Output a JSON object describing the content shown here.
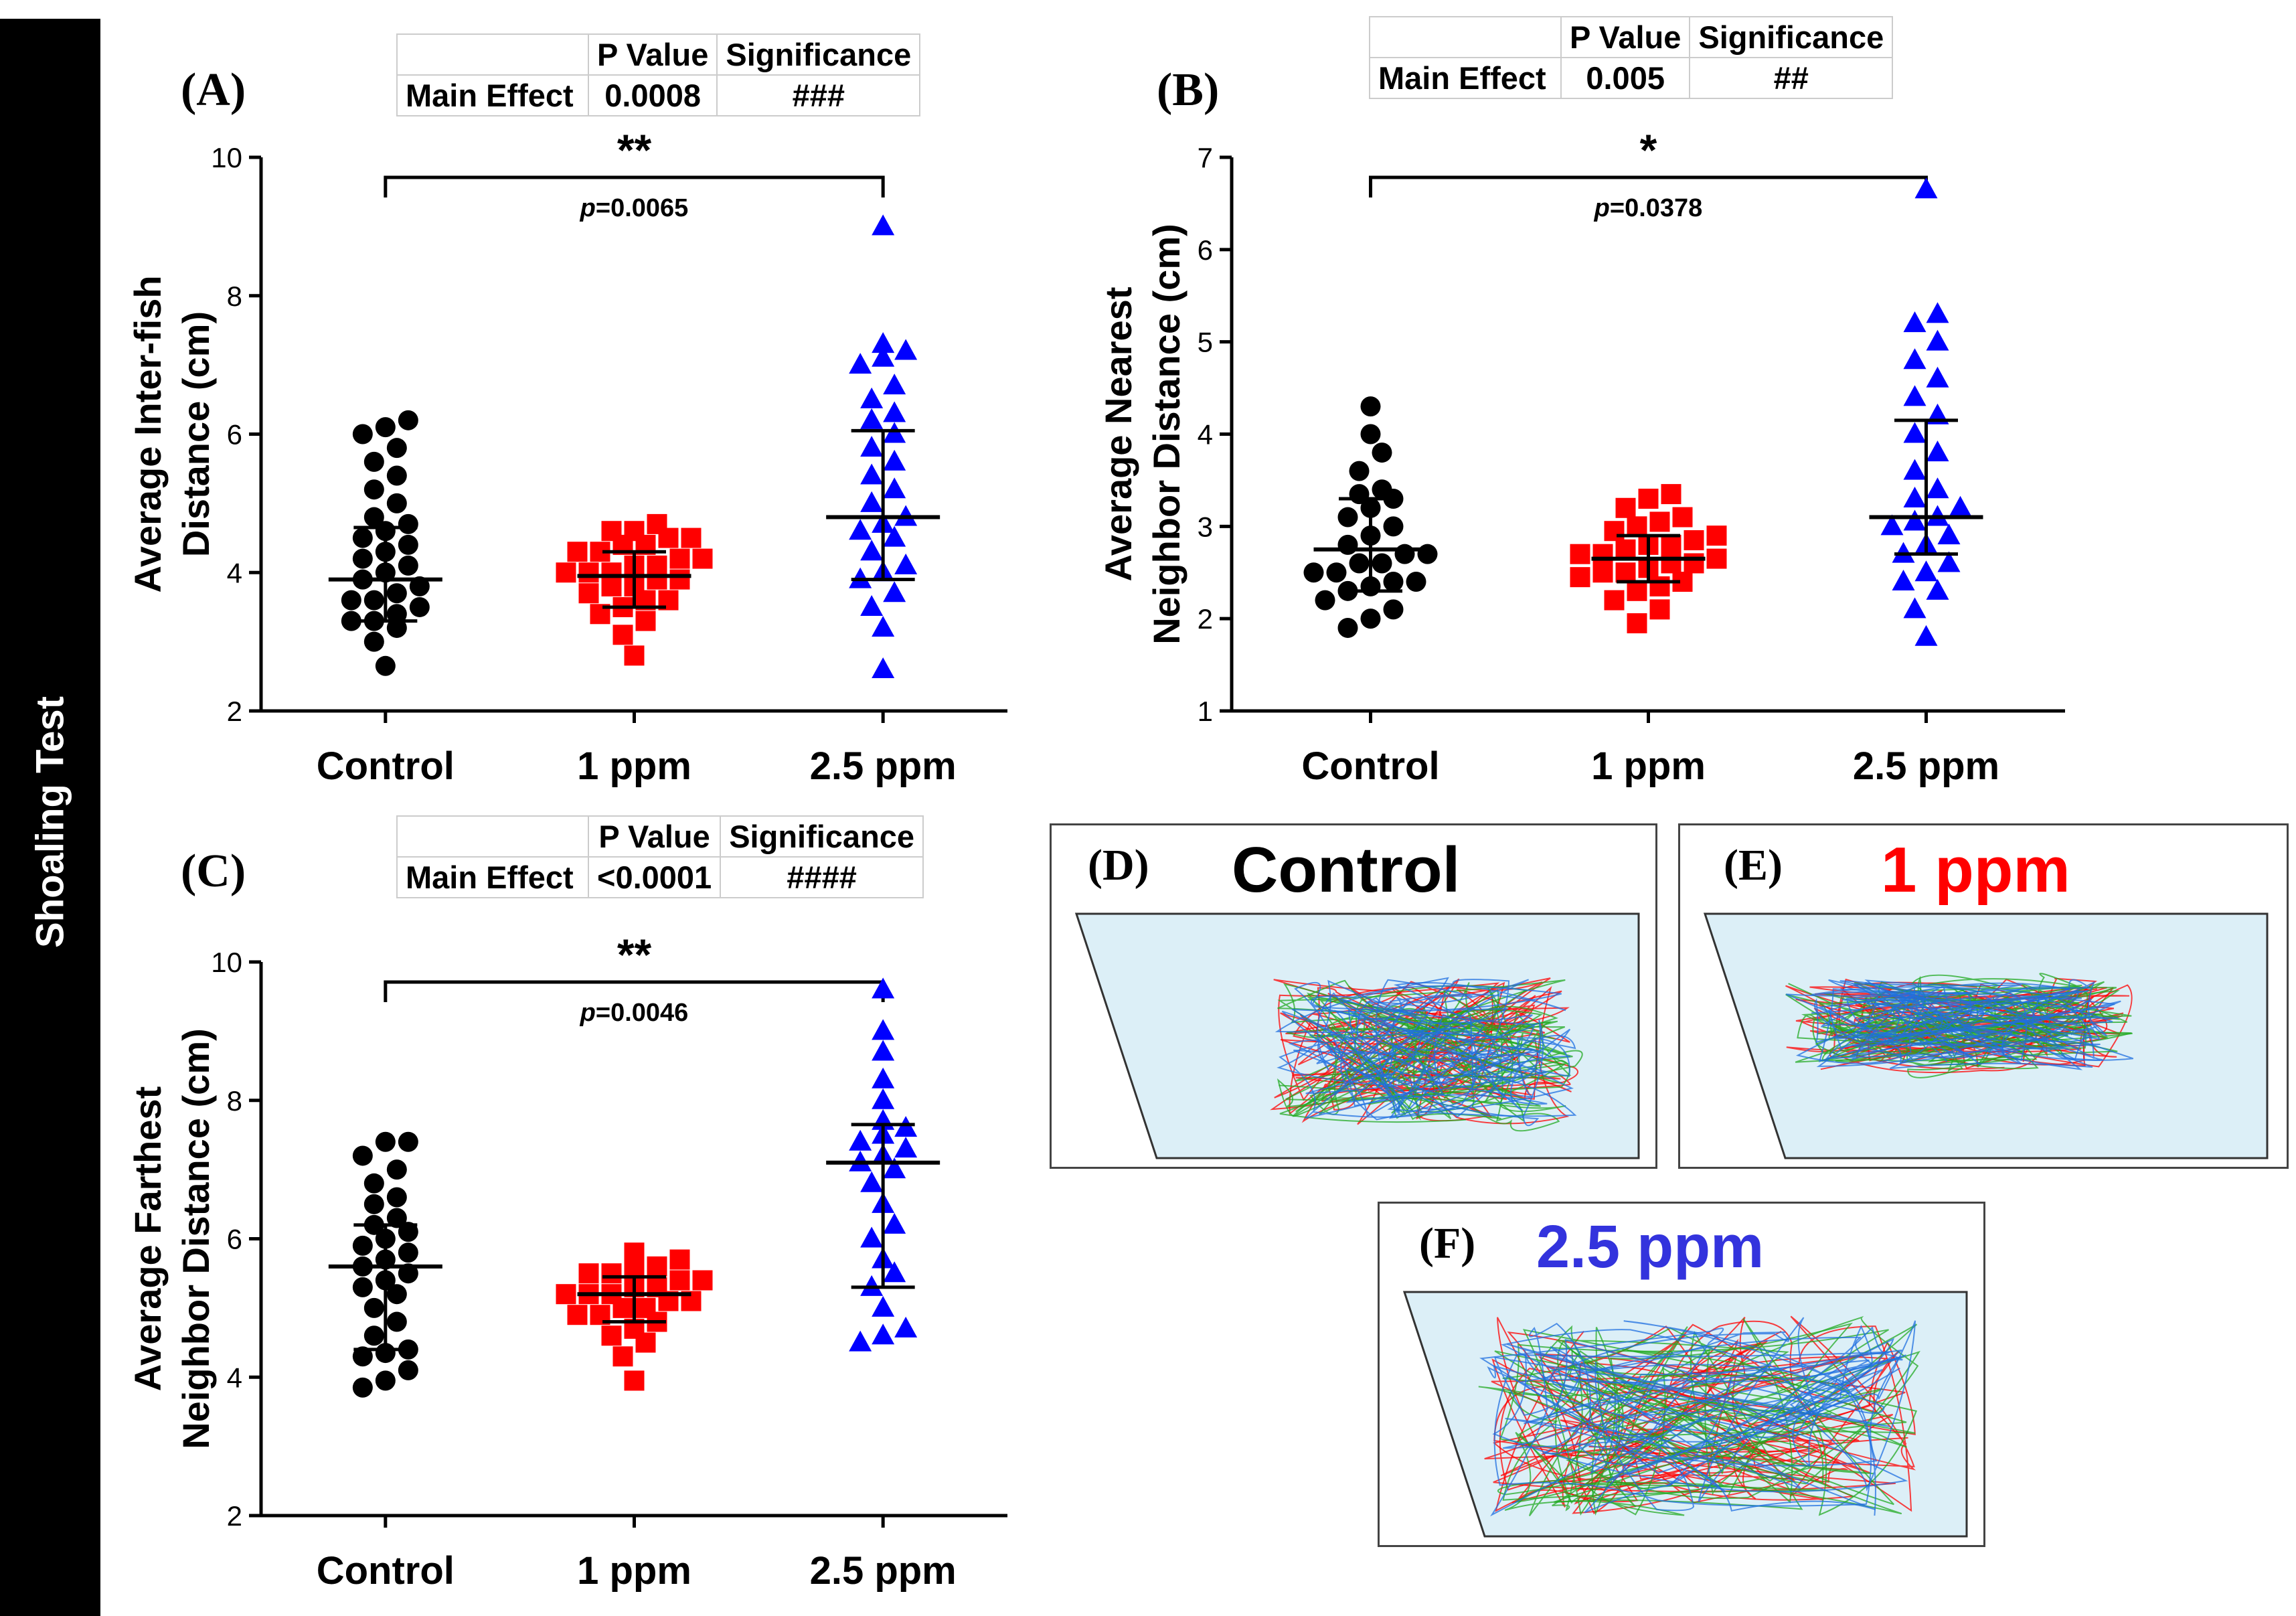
{
  "sidebar": {
    "label": "Shoaling Test"
  },
  "colors": {
    "control": "#000000",
    "ppm1": "#ff0000",
    "ppm25": "#0000ff",
    "tank": "#dceff7"
  },
  "panels": [
    {
      "letter": "(A)",
      "table": {
        "headers": [
          "",
          "P Value",
          "Significance"
        ],
        "row": [
          "Main Effect",
          "0.0008",
          "###"
        ]
      },
      "sig": {
        "stars": "**",
        "p_prefix": "p",
        "p_value": "=0.0065"
      },
      "ylabel1": "Average Inter-fish",
      "ylabel2": "Distance (cm)"
    },
    {
      "letter": "(B)",
      "table": {
        "headers": [
          "",
          "P Value",
          "Significance"
        ],
        "row": [
          "Main Effect",
          "0.005",
          "##"
        ]
      },
      "sig": {
        "stars": "*",
        "p_prefix": "p",
        "p_value": "=0.0378"
      },
      "ylabel1": "Average Nearest",
      "ylabel2": "Neighbor Distance (cm)"
    },
    {
      "letter": "(C)",
      "table": {
        "headers": [
          "",
          "P Value",
          "Significance"
        ],
        "row": [
          "Main Effect",
          "<0.0001",
          "####"
        ]
      },
      "sig": {
        "stars": "**",
        "p_prefix": "p",
        "p_value": "=0.0046"
      },
      "ylabel1": "Average Farthest",
      "ylabel2": "Neighbor Distance (cm)"
    }
  ],
  "chart_data": [
    {
      "type": "scatter",
      "title": "(A)",
      "ylabel": "Average Inter-fish Distance (cm)",
      "categories": [
        "Control",
        "1 ppm",
        "2.5 ppm"
      ],
      "ylim": [
        2,
        10
      ],
      "yticks": [
        2,
        4,
        6,
        8,
        10
      ],
      "series": [
        {
          "name": "Control",
          "marker": "circle",
          "color": "#000000",
          "mean": 3.9,
          "err_low": 3.3,
          "err_high": 4.65,
          "values": [
            2.65,
            3.0,
            3.2,
            3.3,
            3.3,
            3.4,
            3.5,
            3.6,
            3.6,
            3.7,
            3.8,
            3.9,
            4.0,
            4.1,
            4.2,
            4.3,
            4.4,
            4.5,
            4.6,
            4.7,
            4.8,
            5.0,
            5.2,
            5.4,
            5.6,
            5.8,
            6.0,
            6.1,
            6.2
          ]
        },
        {
          "name": "1 ppm",
          "marker": "square",
          "color": "#ff0000",
          "mean": 3.95,
          "err_low": 3.5,
          "err_high": 4.3,
          "values": [
            2.8,
            3.1,
            3.3,
            3.4,
            3.5,
            3.6,
            3.6,
            3.7,
            3.8,
            3.8,
            3.9,
            3.9,
            4.0,
            4.0,
            4.0,
            4.1,
            4.1,
            4.2,
            4.2,
            4.3,
            4.3,
            4.4,
            4.4,
            4.5,
            4.5,
            4.6,
            4.6,
            4.7
          ]
        },
        {
          "name": "2.5 ppm",
          "marker": "triangle",
          "color": "#0000ff",
          "mean": 4.8,
          "err_low": 3.9,
          "err_high": 6.05,
          "values": [
            2.6,
            3.2,
            3.5,
            3.7,
            3.9,
            4.0,
            4.1,
            4.3,
            4.5,
            4.6,
            4.7,
            4.8,
            5.0,
            5.2,
            5.4,
            5.6,
            5.8,
            6.0,
            6.2,
            6.3,
            6.5,
            6.7,
            7.0,
            7.1,
            7.2,
            7.3,
            9.0
          ]
        }
      ]
    },
    {
      "type": "scatter",
      "title": "(B)",
      "ylabel": "Average Nearest Neighbor Distance (cm)",
      "categories": [
        "Control",
        "1 ppm",
        "2.5 ppm"
      ],
      "ylim": [
        1,
        7
      ],
      "yticks": [
        1,
        2,
        3,
        4,
        5,
        6,
        7
      ],
      "series": [
        {
          "name": "Control",
          "marker": "circle",
          "color": "#000000",
          "mean": 2.75,
          "err_low": 2.3,
          "err_high": 3.3,
          "values": [
            1.9,
            2.0,
            2.1,
            2.2,
            2.3,
            2.35,
            2.4,
            2.4,
            2.5,
            2.5,
            2.6,
            2.6,
            2.7,
            2.7,
            2.8,
            2.9,
            3.0,
            3.1,
            3.2,
            3.3,
            3.35,
            3.4,
            3.6,
            3.8,
            4.0,
            4.3
          ]
        },
        {
          "name": "1 ppm",
          "marker": "square",
          "color": "#ff0000",
          "mean": 2.65,
          "err_low": 2.4,
          "err_high": 2.9,
          "values": [
            1.95,
            2.1,
            2.2,
            2.3,
            2.35,
            2.4,
            2.45,
            2.5,
            2.5,
            2.55,
            2.6,
            2.6,
            2.65,
            2.7,
            2.7,
            2.75,
            2.8,
            2.8,
            2.85,
            2.9,
            2.95,
            3.0,
            3.05,
            3.1,
            3.2,
            3.3,
            3.35
          ]
        },
        {
          "name": "2.5 ppm",
          "marker": "triangle",
          "color": "#0000ff",
          "mean": 3.1,
          "err_low": 2.7,
          "err_high": 4.15,
          "values": [
            1.8,
            2.1,
            2.3,
            2.4,
            2.5,
            2.6,
            2.7,
            2.8,
            2.9,
            3.0,
            3.05,
            3.1,
            3.2,
            3.3,
            3.4,
            3.6,
            3.8,
            4.0,
            4.2,
            4.4,
            4.6,
            4.8,
            5.0,
            5.2,
            5.3,
            6.65
          ]
        }
      ]
    },
    {
      "type": "scatter",
      "title": "(C)",
      "ylabel": "Average Farthest Neighbor Distance (cm)",
      "categories": [
        "Control",
        "1 ppm",
        "2.5 ppm"
      ],
      "ylim": [
        2,
        10
      ],
      "yticks": [
        2,
        4,
        6,
        8,
        10
      ],
      "series": [
        {
          "name": "Control",
          "marker": "circle",
          "color": "#000000",
          "mean": 5.6,
          "err_low": 4.4,
          "err_high": 6.2,
          "values": [
            3.85,
            3.95,
            4.1,
            4.3,
            4.35,
            4.4,
            4.6,
            4.8,
            5.0,
            5.2,
            5.3,
            5.4,
            5.5,
            5.6,
            5.7,
            5.8,
            5.9,
            6.0,
            6.1,
            6.2,
            6.3,
            6.5,
            6.6,
            6.8,
            7.0,
            7.2,
            7.4,
            7.4
          ]
        },
        {
          "name": "1 ppm",
          "marker": "square",
          "color": "#ff0000",
          "mean": 5.2,
          "err_low": 4.8,
          "err_high": 5.45,
          "values": [
            3.95,
            4.3,
            4.5,
            4.6,
            4.7,
            4.8,
            4.9,
            4.9,
            5.0,
            5.0,
            5.1,
            5.1,
            5.2,
            5.2,
            5.2,
            5.3,
            5.3,
            5.4,
            5.4,
            5.5,
            5.5,
            5.6,
            5.6,
            5.7,
            5.8
          ]
        },
        {
          "name": "2.5 ppm",
          "marker": "triangle",
          "color": "#0000ff",
          "mean": 7.1,
          "err_low": 5.3,
          "err_high": 7.65,
          "values": [
            4.5,
            4.6,
            4.7,
            5.0,
            5.3,
            5.5,
            5.7,
            6.0,
            6.2,
            6.5,
            6.8,
            7.0,
            7.1,
            7.2,
            7.3,
            7.4,
            7.5,
            7.6,
            7.7,
            8.0,
            8.3,
            8.7,
            9.0,
            9.6
          ]
        }
      ]
    }
  ],
  "tracks": [
    {
      "letter": "(D)",
      "title": "Control",
      "title_color": "#000000"
    },
    {
      "letter": "(E)",
      "title": "1 ppm",
      "title_color": "#ff0000"
    },
    {
      "letter": "(F)",
      "title": "2.5 ppm",
      "title_color": "#3333dd"
    }
  ]
}
